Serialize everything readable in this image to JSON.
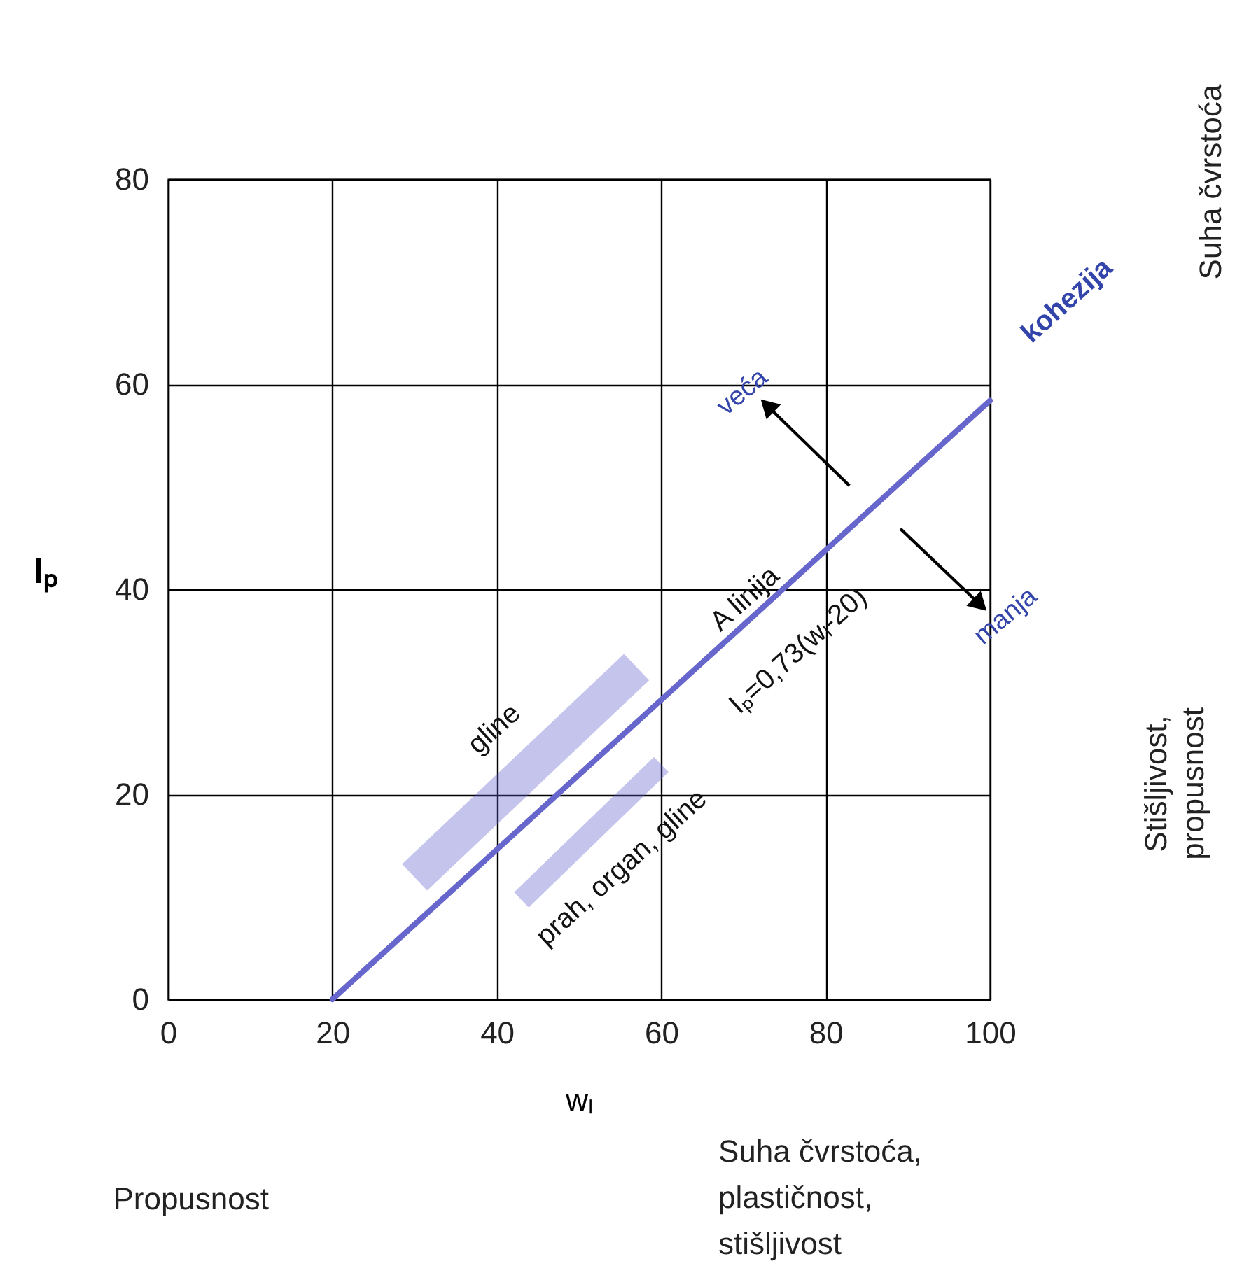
{
  "chart_data": {
    "type": "line",
    "xlabel": "wₗ",
    "ylabel": "Iₚ",
    "xlim": [
      0,
      100
    ],
    "ylim": [
      0,
      80
    ],
    "xticks": [
      0,
      20,
      40,
      60,
      80,
      100
    ],
    "yticks": [
      0,
      20,
      40,
      60,
      80
    ],
    "grid": true,
    "series": [
      {
        "color": "#6666cc",
        "x": [
          20,
          100
        ],
        "values": [
          0,
          58.4
        ]
      },
      {
        "color": "#5555cc",
        "x": [
          30,
          57
        ],
        "values": [
          11.9,
          32.4
        ]
      },
      {
        "color": "#5555cc",
        "x": [
          43,
          60
        ],
        "values": [
          9.7,
          22.9
        ]
      },
      {
        "color": "#000000",
        "marker": "triangle",
        "x": [
          82.9,
          72.9
        ],
        "values": [
          50.1,
          57.9
        ]
      },
      {
        "color": "#000000",
        "marker": "triangle",
        "x": [
          89.1,
          98.8
        ],
        "values": [
          45.9,
          38.5
        ]
      }
    ],
    "annotations": [
      "gline",
      "A linija",
      "Iₚ=0,73(wₗ-20)",
      "prah, organ, gline",
      "kohezija",
      "veća",
      "manja",
      "Suha čvrstoća",
      "Stišljivost,\npropusnost",
      "Propusnost",
      "Suha čvrstoća,\nplastičnost,\nstišljivost"
    ]
  }
}
